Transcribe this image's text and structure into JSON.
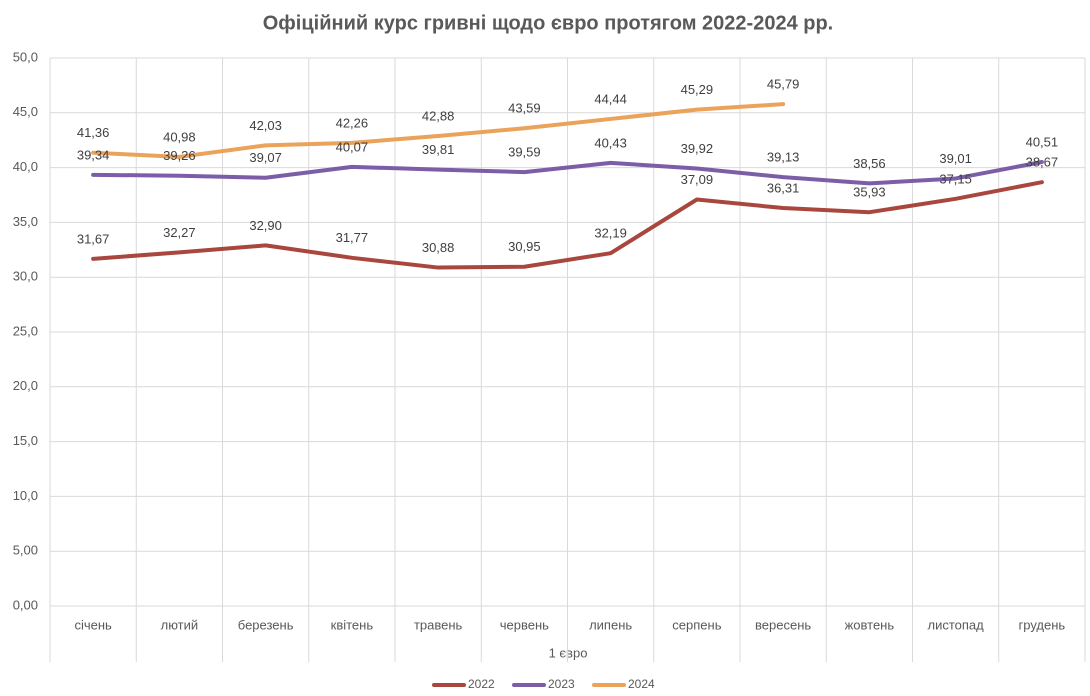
{
  "chart_data": {
    "type": "line",
    "title": "Офіційний курс гривні щодо євро протягом 2022-2024 рр.",
    "x_label": "1 євро",
    "categories": [
      "січень",
      "лютий",
      "березень",
      "квітень",
      "травень",
      "червень",
      "липень",
      "серпень",
      "вересень",
      "жовтень",
      "листопад",
      "грудень"
    ],
    "series": [
      {
        "name": "2022",
        "color": "#a9473f",
        "values": [
          31.67,
          32.27,
          32.9,
          31.77,
          30.88,
          30.95,
          32.19,
          37.09,
          36.31,
          35.93,
          37.15,
          38.67
        ],
        "value_labels": [
          "31,67",
          "32,27",
          "32,90",
          "31,77",
          "30,88",
          "30,95",
          "32,19",
          "37,09",
          "36,31",
          "35,93",
          "37,15",
          "38,67"
        ]
      },
      {
        "name": "2023",
        "color": "#7b5ea7",
        "values": [
          39.34,
          39.26,
          39.07,
          40.07,
          39.81,
          39.59,
          40.43,
          39.92,
          39.13,
          38.56,
          39.01,
          40.51
        ],
        "value_labels": [
          "39,34",
          "39,26",
          "39,07",
          "40,07",
          "39,81",
          "39,59",
          "40,43",
          "39,92",
          "39,13",
          "38,56",
          "39,01",
          "40,51"
        ]
      },
      {
        "name": "2024",
        "color": "#eba25a",
        "values": [
          41.36,
          40.98,
          42.03,
          42.26,
          42.88,
          43.59,
          44.44,
          45.29,
          45.79,
          null,
          null,
          null
        ],
        "value_labels": [
          "41,36",
          "40,98",
          "42,03",
          "42,26",
          "42,88",
          "43,59",
          "44,44",
          "45,29",
          "45,79",
          null,
          null,
          null
        ]
      }
    ],
    "ylim": [
      0,
      50
    ],
    "yticks": [
      {
        "value": 0,
        "label": "0,00"
      },
      {
        "value": 5,
        "label": "5,00"
      },
      {
        "value": 10,
        "label": "10,0"
      },
      {
        "value": 15,
        "label": "15,0"
      },
      {
        "value": 20,
        "label": "20,0"
      },
      {
        "value": 25,
        "label": "25,0"
      },
      {
        "value": 30,
        "label": "30,0"
      },
      {
        "value": 35,
        "label": "35,0"
      },
      {
        "value": 40,
        "label": "40,0"
      },
      {
        "value": 45,
        "label": "45,0"
      },
      {
        "value": 50,
        "label": "50,0"
      }
    ],
    "grid": true,
    "legend": "bottom"
  }
}
